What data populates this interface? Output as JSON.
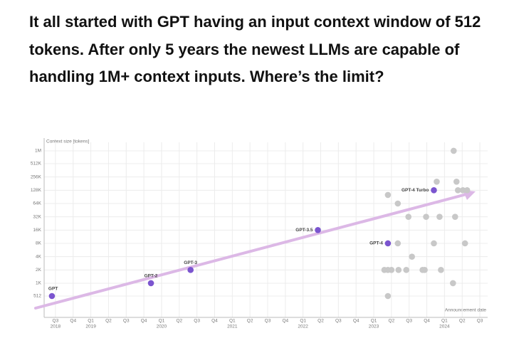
{
  "heading": "It all started with GPT having an input context window of 512 tokens. After only 5 years the newest LLMs are capable of handling 1M+ context inputs. Where’s the limit?",
  "chart_data": {
    "type": "scatter",
    "y_label": "Context size [tokens]",
    "x_label": "Announcement date",
    "log_y": true,
    "grid": true,
    "ylim": [
      210,
      1560000
    ],
    "yticks": [
      512,
      {
        "value": 1000,
        "label": "1K"
      },
      {
        "value": 2000,
        "label": "2K"
      },
      {
        "value": 4000,
        "label": "4K"
      },
      {
        "value": 8000,
        "label": "8K"
      },
      {
        "value": 16000,
        "label": "16K"
      },
      {
        "value": 32000,
        "label": "32K"
      },
      {
        "value": 64000,
        "label": "64K"
      },
      {
        "value": 128000,
        "label": "128K"
      },
      {
        "value": 256000,
        "label": "256K"
      },
      {
        "value": 512000,
        "label": "512K"
      },
      {
        "value": 1000000,
        "label": "1M"
      }
    ],
    "xlim": [
      2018.34,
      2024.61
    ],
    "xticks": [
      {
        "value": 2018.5,
        "label": "Q3"
      },
      {
        "value": 2018.75,
        "label": "Q4"
      },
      {
        "value": 2019,
        "label": "Q1"
      },
      {
        "value": 2019.25,
        "label": "Q2"
      },
      {
        "value": 2019.5,
        "label": "Q3"
      },
      {
        "value": 2019.75,
        "label": "Q4"
      },
      {
        "value": 2020,
        "label": "Q1"
      },
      {
        "value": 2020.25,
        "label": "Q2"
      },
      {
        "value": 2020.5,
        "label": "Q3"
      },
      {
        "value": 2020.75,
        "label": "Q4"
      },
      {
        "value": 2021,
        "label": "Q1"
      },
      {
        "value": 2021.25,
        "label": "Q2"
      },
      {
        "value": 2021.5,
        "label": "Q3"
      },
      {
        "value": 2021.75,
        "label": "Q4"
      },
      {
        "value": 2022,
        "label": "Q1"
      },
      {
        "value": 2022.25,
        "label": "Q2"
      },
      {
        "value": 2022.5,
        "label": "Q3"
      },
      {
        "value": 2022.75,
        "label": "Q4"
      },
      {
        "value": 2023,
        "label": "Q1"
      },
      {
        "value": 2023.25,
        "label": "Q2"
      },
      {
        "value": 2023.5,
        "label": "Q3"
      },
      {
        "value": 2023.75,
        "label": "Q4"
      },
      {
        "value": 2024,
        "label": "Q1"
      },
      {
        "value": 2024.25,
        "label": "Q2"
      },
      {
        "value": 2024.5,
        "label": "Q3"
      }
    ],
    "year_labels": [
      {
        "value": 2018.5,
        "label": "2018"
      },
      {
        "value": 2019,
        "label": "2019"
      },
      {
        "value": 2020,
        "label": "2020"
      },
      {
        "value": 2021,
        "label": "2021"
      },
      {
        "value": 2022,
        "label": "2022"
      },
      {
        "value": 2023,
        "label": "2023"
      },
      {
        "value": 2024,
        "label": "2024"
      }
    ],
    "series": [
      {
        "color": "#7b55cf",
        "x": [
          2018.45,
          2019.85,
          2020.41,
          2022.21,
          2023.2,
          2023.85
        ],
        "values": [
          512,
          1000,
          2000,
          16000,
          8000,
          128000
        ],
        "point_labels": [
          "GPT",
          "GPT-2",
          "GPT-3",
          "GPT-3.5",
          "GPT-4",
          "GPT-4 Turbo"
        ]
      },
      {
        "color": "#c8c8c8",
        "x": [
          2023.2,
          2023.34,
          2023.49,
          2023.74,
          2023.93,
          2024.15,
          2023.34,
          2023.85,
          2024.29,
          2023.54,
          2023.15,
          2023.2,
          2023.25,
          2023.35,
          2023.46,
          2023.69,
          2023.72,
          2023.95,
          2023.2,
          2024.13,
          2023.89,
          2024.17,
          2024.19,
          2024.26,
          2024.32,
          2024.12
        ],
        "values": [
          100000,
          64000,
          32000,
          32000,
          32000,
          32000,
          8000,
          8000,
          8000,
          4000,
          2000,
          2000,
          2000,
          2000,
          2000,
          2000,
          2000,
          2000,
          512,
          1000000,
          200000,
          200000,
          128000,
          128000,
          128000,
          1000
        ]
      }
    ]
  }
}
